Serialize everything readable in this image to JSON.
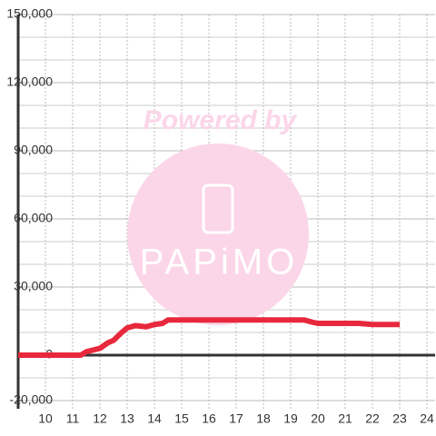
{
  "chart_data": {
    "type": "line",
    "x": [
      9,
      11.3,
      11.5,
      12,
      12.3,
      12.5,
      12.8,
      13,
      13.3,
      13.7,
      14,
      14.3,
      14.5,
      15,
      16,
      17,
      18,
      19,
      19.5,
      19.8,
      20,
      21,
      21.5,
      22,
      23
    ],
    "series": [
      {
        "color": "#e8283c",
        "values": [
          0,
          0,
          1500,
          3000,
          5500,
          6500,
          10000,
          12000,
          13000,
          12500,
          13500,
          14000,
          15500,
          15500,
          15500,
          15500,
          15500,
          15500,
          15500,
          14500,
          14000,
          14000,
          14000,
          13500,
          13500
        ]
      }
    ],
    "xlim": [
      9,
      24.3
    ],
    "xticks": [
      10,
      11,
      12,
      13,
      14,
      15,
      16,
      17,
      18,
      19,
      20,
      21,
      22,
      23,
      24
    ],
    "ylim": [
      -23600,
      150000
    ],
    "yticks": [
      {
        "value": -20000,
        "label": "-20,000"
      },
      0,
      {
        "value": 30000,
        "label": "30,000"
      },
      {
        "value": 60000,
        "label": "60,000"
      },
      {
        "value": 90000,
        "label": "90,000"
      },
      {
        "value": 120000,
        "label": "120,000"
      },
      {
        "value": 150000,
        "label": "150,000"
      }
    ],
    "y_minor_grid": [
      -10000,
      10000,
      20000,
      40000,
      50000,
      70000,
      80000,
      100000,
      110000,
      130000,
      140000
    ],
    "grid": true,
    "watermark": {
      "top": "Powered by",
      "bottom": "PAPiMO"
    }
  }
}
